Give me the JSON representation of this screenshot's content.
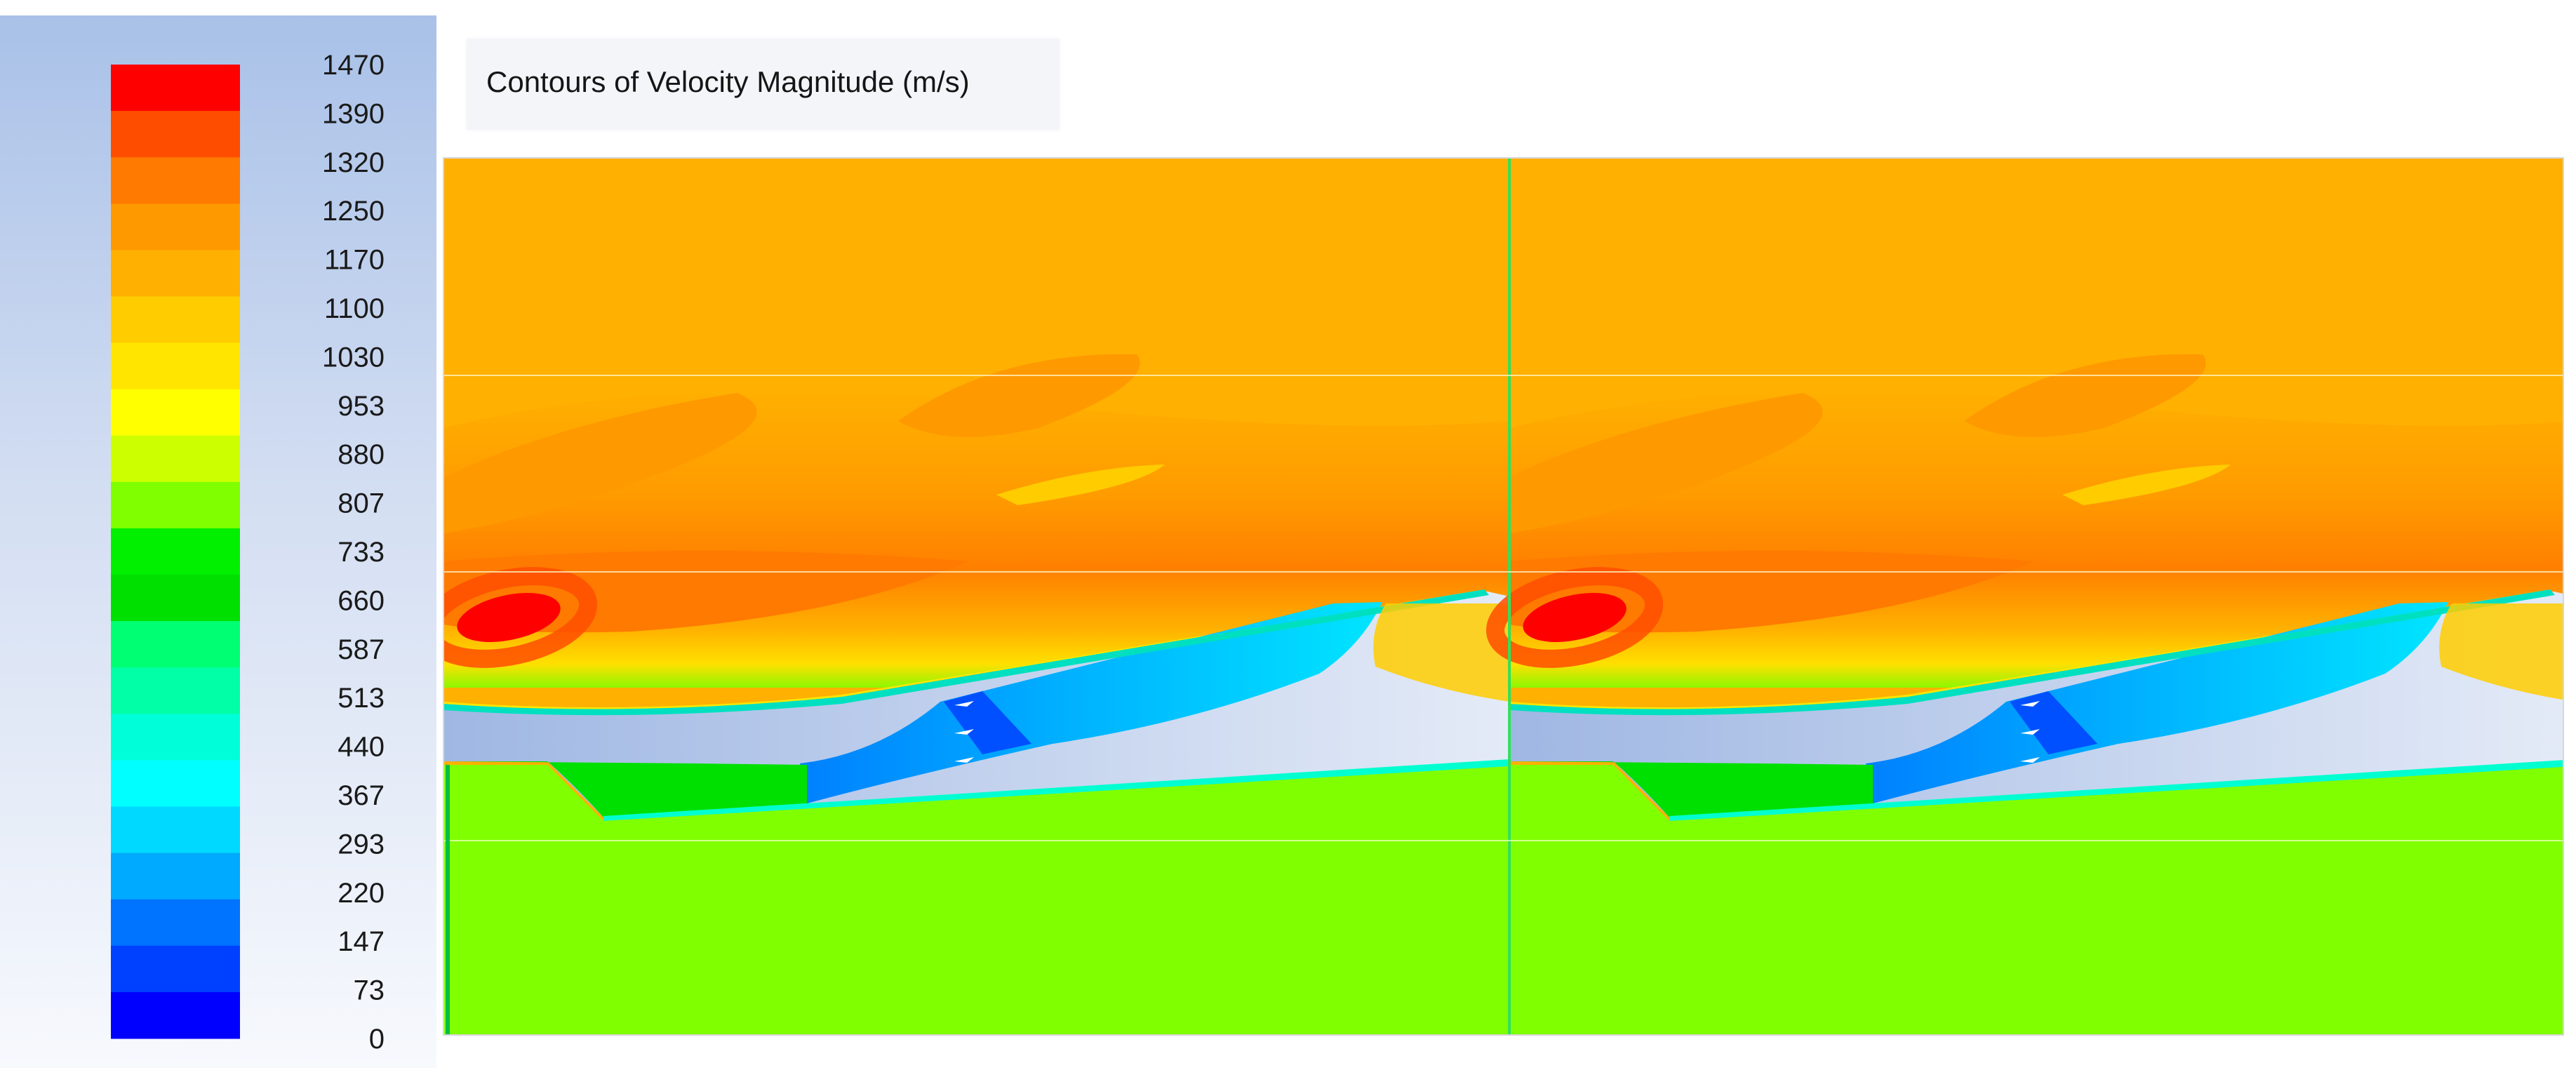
{
  "chart_data": {
    "type": "heatmap",
    "title": "Contours of Velocity Magnitude (m/s)",
    "quantity": "Velocity Magnitude",
    "unit": "m/s",
    "colorbar": {
      "tick_labels": [
        "1470",
        "1390",
        "1320",
        "1250",
        "1170",
        "1100",
        "1030",
        "953",
        "880",
        "807",
        "733",
        "660",
        "587",
        "513",
        "440",
        "367",
        "293",
        "220",
        "147",
        "73",
        "0"
      ],
      "band_colors": [
        "#ff0000",
        "#ff4d00",
        "#ff7a00",
        "#ff9900",
        "#ffb000",
        "#ffcc00",
        "#ffe500",
        "#ffff00",
        "#ccff00",
        "#80ff00",
        "#00f000",
        "#00e000",
        "#00ff73",
        "#00ffa6",
        "#00ffd9",
        "#00ffff",
        "#00d9ff",
        "#00aaff",
        "#0073ff",
        "#0040ff",
        "#0000ff"
      ]
    },
    "field": {
      "freestream_color": "#ffb000",
      "upper_wake_color": "#ff9900",
      "hot_spot_color": "#ff0000",
      "ramp_region_color": "#00e000",
      "lower_region_color": "#80ff00",
      "internal_flow_color": "#00ccff",
      "channel_color": "#aec4e8",
      "periods": 2
    }
  }
}
